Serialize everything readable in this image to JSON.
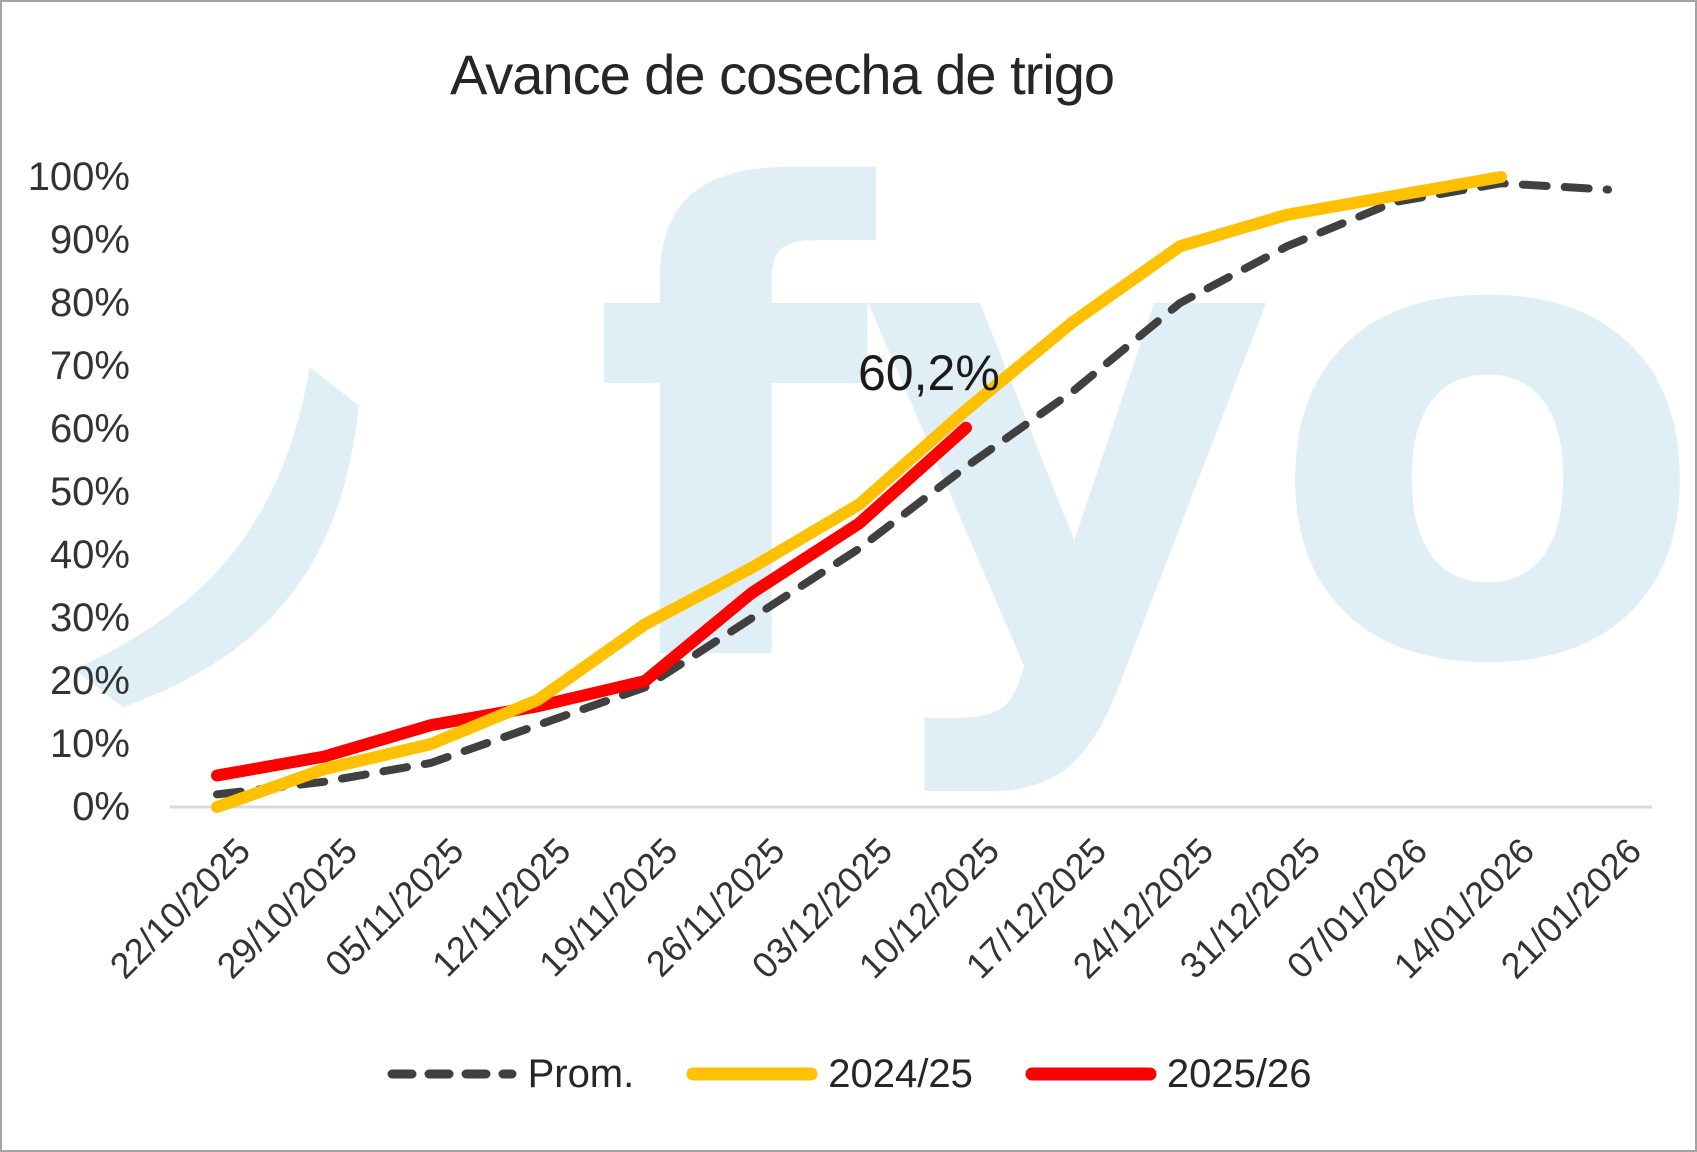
{
  "chart_data": {
    "type": "line",
    "title": "Avance de cosecha de trigo",
    "xlabel": "",
    "ylabel": "",
    "ylim": [
      0,
      100
    ],
    "grid": false,
    "legend_position": "bottom",
    "y_ticks": [
      "0%",
      "10%",
      "20%",
      "30%",
      "40%",
      "50%",
      "60%",
      "70%",
      "80%",
      "90%",
      "100%"
    ],
    "y_tick_values": [
      0,
      10,
      20,
      30,
      40,
      50,
      60,
      70,
      80,
      90,
      100
    ],
    "categories": [
      "22/10/2025",
      "29/10/2025",
      "05/11/2025",
      "12/11/2025",
      "19/11/2025",
      "26/11/2025",
      "03/12/2025",
      "10/12/2025",
      "17/12/2025",
      "24/12/2025",
      "31/12/2025",
      "07/01/2026",
      "14/01/2026",
      "21/01/2026"
    ],
    "series": [
      {
        "name": "Prom.",
        "style": "dashed",
        "color": "#404040",
        "values": [
          2,
          4,
          7,
          13,
          19,
          30,
          41,
          54,
          66,
          80,
          89,
          96,
          99,
          98
        ]
      },
      {
        "name": "2024/25",
        "style": "solid",
        "color": "#FFC000",
        "values": [
          0,
          6,
          10,
          17,
          29,
          38,
          48,
          63,
          77,
          89,
          94,
          97,
          100,
          null
        ]
      },
      {
        "name": "2025/26",
        "style": "solid",
        "color": "#FF0000",
        "values": [
          5,
          8,
          13,
          16,
          20,
          34,
          45,
          60.2,
          null,
          null,
          null,
          null,
          null,
          null
        ]
      }
    ],
    "annotation": {
      "text": "60,2%",
      "series": "2025/26",
      "category": "10/12/2025",
      "value": 60.2
    },
    "axis_color": "#d9d9d9",
    "watermark": {
      "mark": ")",
      "text": "fyo",
      "color": "#e0eef5"
    }
  }
}
